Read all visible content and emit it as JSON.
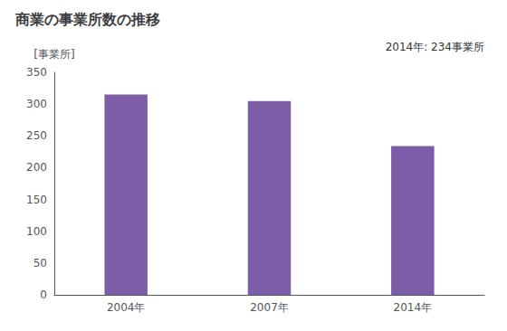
{
  "chart_data": {
    "type": "bar",
    "title": "商業の事業所数の推移",
    "ylabel": "[事業所]",
    "categories": [
      "2004年",
      "2007年",
      "2014年"
    ],
    "values": [
      315,
      305,
      234
    ],
    "color": "#7B5EA7",
    "ylim": [
      0,
      350
    ],
    "yticks": [
      0,
      50,
      100,
      150,
      200,
      250,
      300,
      350
    ],
    "grid": false,
    "annotation": "2014年: 234事業所"
  }
}
